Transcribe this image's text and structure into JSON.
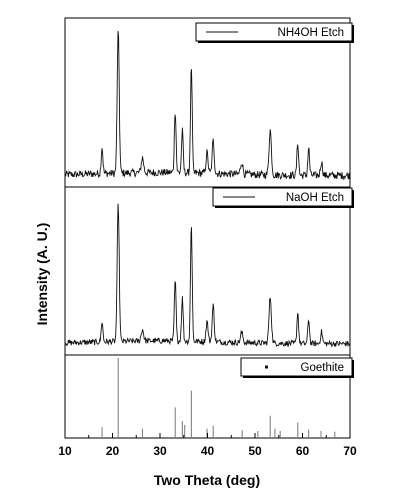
{
  "chart_data": {
    "type": "line",
    "xlabel": "Two Theta (deg)",
    "ylabel": "Intensity (A. U.)",
    "xlim": [
      10,
      70
    ],
    "x_ticks": [
      10,
      20,
      30,
      40,
      50,
      60,
      70
    ],
    "grid": false,
    "panels": [
      {
        "name": "NH4OH Etch",
        "kind": "line",
        "legend_position": "top-right",
        "baseline": 0.05,
        "noise": 0.025,
        "peaks": [
          {
            "x": 17.8,
            "y": 0.18,
            "w": 0.25
          },
          {
            "x": 21.2,
            "y": 0.95,
            "w": 0.3
          },
          {
            "x": 26.3,
            "y": 0.1,
            "w": 0.35
          },
          {
            "x": 33.2,
            "y": 0.42,
            "w": 0.25
          },
          {
            "x": 34.7,
            "y": 0.28,
            "w": 0.25
          },
          {
            "x": 36.6,
            "y": 0.72,
            "w": 0.25
          },
          {
            "x": 39.9,
            "y": 0.14,
            "w": 0.3
          },
          {
            "x": 41.2,
            "y": 0.22,
            "w": 0.3
          },
          {
            "x": 47.2,
            "y": 0.08,
            "w": 0.35
          },
          {
            "x": 53.2,
            "y": 0.3,
            "w": 0.35
          },
          {
            "x": 59.0,
            "y": 0.22,
            "w": 0.25
          },
          {
            "x": 61.3,
            "y": 0.18,
            "w": 0.25
          },
          {
            "x": 64.0,
            "y": 0.09,
            "w": 0.3
          }
        ]
      },
      {
        "name": "NaOH Etch",
        "kind": "line",
        "legend_position": "top-right",
        "baseline": 0.05,
        "noise": 0.02,
        "peaks": [
          {
            "x": 17.8,
            "y": 0.14,
            "w": 0.25
          },
          {
            "x": 21.2,
            "y": 0.95,
            "w": 0.3
          },
          {
            "x": 26.3,
            "y": 0.08,
            "w": 0.35
          },
          {
            "x": 33.2,
            "y": 0.42,
            "w": 0.25
          },
          {
            "x": 34.7,
            "y": 0.3,
            "w": 0.25
          },
          {
            "x": 36.6,
            "y": 0.82,
            "w": 0.25
          },
          {
            "x": 39.9,
            "y": 0.14,
            "w": 0.3
          },
          {
            "x": 41.2,
            "y": 0.25,
            "w": 0.3
          },
          {
            "x": 47.2,
            "y": 0.07,
            "w": 0.35
          },
          {
            "x": 53.2,
            "y": 0.32,
            "w": 0.35
          },
          {
            "x": 59.0,
            "y": 0.22,
            "w": 0.25
          },
          {
            "x": 61.3,
            "y": 0.17,
            "w": 0.25
          },
          {
            "x": 64.0,
            "y": 0.08,
            "w": 0.3
          }
        ]
      },
      {
        "name": "Goethite",
        "kind": "stick",
        "legend_position": "top-right",
        "sticks": [
          {
            "x": 17.8,
            "y": 0.09
          },
          {
            "x": 21.2,
            "y": 1.0
          },
          {
            "x": 26.3,
            "y": 0.07
          },
          {
            "x": 33.2,
            "y": 0.35
          },
          {
            "x": 34.7,
            "y": 0.17
          },
          {
            "x": 35.2,
            "y": 0.12
          },
          {
            "x": 36.6,
            "y": 0.57
          },
          {
            "x": 39.9,
            "y": 0.07
          },
          {
            "x": 41.2,
            "y": 0.11
          },
          {
            "x": 47.3,
            "y": 0.05
          },
          {
            "x": 50.6,
            "y": 0.04
          },
          {
            "x": 53.2,
            "y": 0.24
          },
          {
            "x": 54.2,
            "y": 0.07
          },
          {
            "x": 55.3,
            "y": 0.04
          },
          {
            "x": 59.0,
            "y": 0.15
          },
          {
            "x": 61.3,
            "y": 0.06
          },
          {
            "x": 63.9,
            "y": 0.04
          },
          {
            "x": 66.8,
            "y": 0.03
          }
        ]
      }
    ]
  }
}
